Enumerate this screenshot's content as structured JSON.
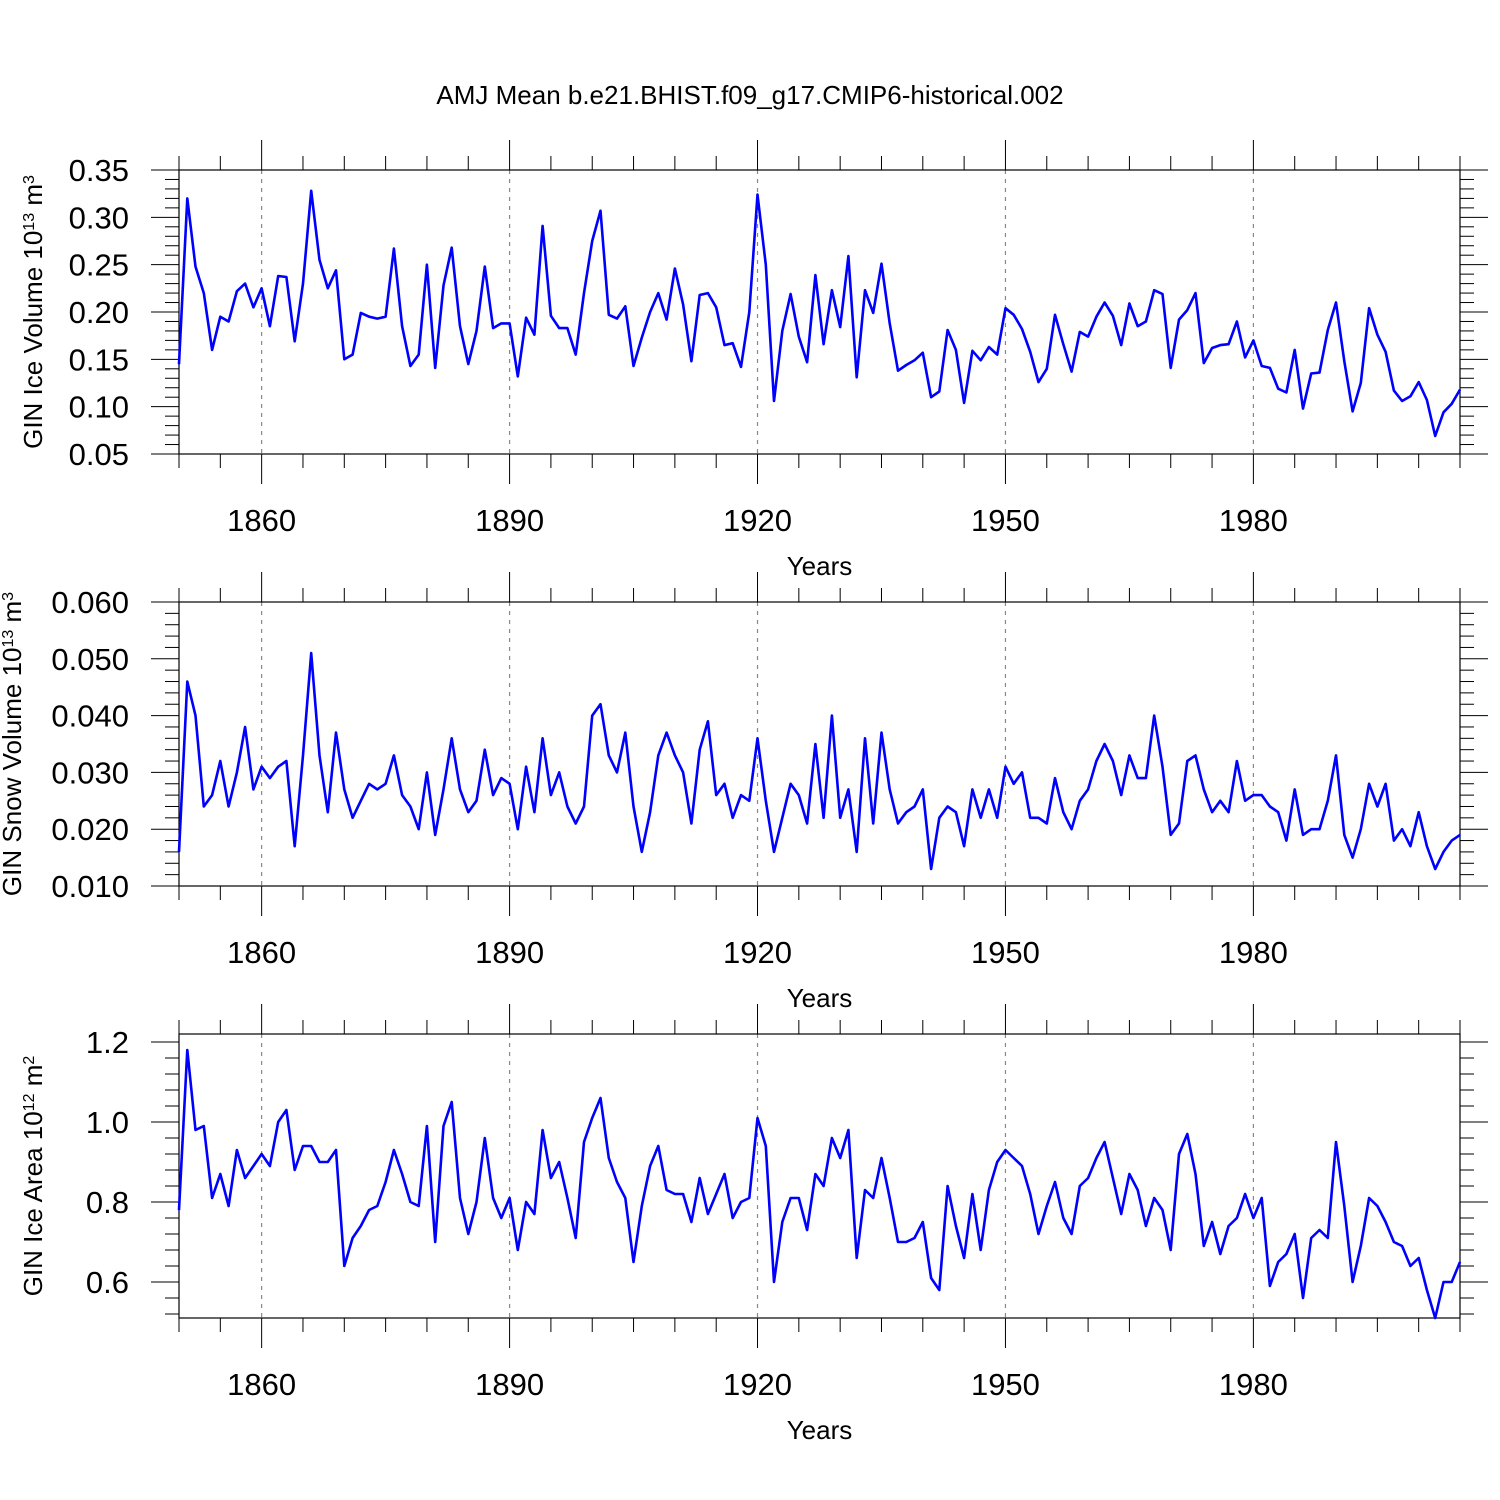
{
  "title": "AMJ Mean b.e21.BHIST.f09_g17.CMIP6-historical.002",
  "colors": {
    "line": "#0000ff",
    "axis": "#000000",
    "grid": "#888888"
  },
  "chart_data": [
    {
      "type": "line",
      "xlabel": "Years",
      "ylabel_main": "GIN Ice Volume 10",
      "ylabel_sup": "13",
      "ylabel_unit": " m",
      "ylabel_unit_sup": "3",
      "xlim": [
        1850,
        2005
      ],
      "ylim": [
        0.05,
        0.35
      ],
      "yticks": [
        0.05,
        0.1,
        0.15,
        0.2,
        0.25,
        0.3,
        0.35
      ],
      "ytick_labels": [
        "0.05",
        "0.10",
        "0.15",
        "0.20",
        "0.25",
        "0.30",
        "0.35"
      ],
      "yminor_step": 0.01,
      "xticks": [
        1860,
        1890,
        1920,
        1950,
        1980
      ],
      "xtick_labels": [
        "1860",
        "1890",
        "1920",
        "1950",
        "1980"
      ],
      "grid": "vertical dashed at major x ticks",
      "x_start": 1850,
      "values": [
        0.145,
        0.32,
        0.248,
        0.22,
        0.16,
        0.195,
        0.19,
        0.222,
        0.23,
        0.205,
        0.225,
        0.185,
        0.238,
        0.237,
        0.169,
        0.23,
        0.328,
        0.255,
        0.225,
        0.244,
        0.15,
        0.155,
        0.199,
        0.195,
        0.193,
        0.195,
        0.267,
        0.185,
        0.143,
        0.155,
        0.25,
        0.141,
        0.228,
        0.268,
        0.185,
        0.145,
        0.18,
        0.248,
        0.183,
        0.188,
        0.188,
        0.132,
        0.194,
        0.176,
        0.291,
        0.196,
        0.183,
        0.183,
        0.155,
        0.22,
        0.275,
        0.307,
        0.197,
        0.193,
        0.206,
        0.143,
        0.173,
        0.2,
        0.22,
        0.192,
        0.246,
        0.208,
        0.148,
        0.218,
        0.22,
        0.205,
        0.165,
        0.167,
        0.142,
        0.2,
        0.324,
        0.25,
        0.106,
        0.18,
        0.219,
        0.174,
        0.147,
        0.239,
        0.166,
        0.223,
        0.184,
        0.259,
        0.131,
        0.223,
        0.199,
        0.251,
        0.188,
        0.138,
        0.144,
        0.149,
        0.157,
        0.11,
        0.116,
        0.181,
        0.16,
        0.104,
        0.159,
        0.149,
        0.163,
        0.155,
        0.204,
        0.197,
        0.182,
        0.158,
        0.126,
        0.14,
        0.197,
        0.166,
        0.137,
        0.179,
        0.174,
        0.195,
        0.21,
        0.196,
        0.165,
        0.209,
        0.185,
        0.19,
        0.223,
        0.219,
        0.141,
        0.192,
        0.202,
        0.22,
        0.146,
        0.162,
        0.165,
        0.166,
        0.19,
        0.152,
        0.17,
        0.143,
        0.141,
        0.119,
        0.115,
        0.16,
        0.098,
        0.135,
        0.136,
        0.181,
        0.21,
        0.148,
        0.095,
        0.125,
        0.204,
        0.176,
        0.158,
        0.117,
        0.106,
        0.111,
        0.126,
        0.107,
        0.069,
        0.094,
        0.103,
        0.118
      ]
    },
    {
      "type": "line",
      "xlabel": "Years",
      "ylabel_main": "GIN Snow Volume 10",
      "ylabel_sup": "13",
      "ylabel_unit": " m",
      "ylabel_unit_sup": "3",
      "xlim": [
        1850,
        2005
      ],
      "ylim": [
        0.01,
        0.06
      ],
      "yticks": [
        0.01,
        0.02,
        0.03,
        0.04,
        0.05,
        0.06
      ],
      "ytick_labels": [
        "0.010",
        "0.020",
        "0.030",
        "0.040",
        "0.050",
        "0.060"
      ],
      "yminor_step": 0.002,
      "xticks": [
        1860,
        1890,
        1920,
        1950,
        1980
      ],
      "xtick_labels": [
        "1860",
        "1890",
        "1920",
        "1950",
        "1980"
      ],
      "grid": "vertical dashed at major x ticks",
      "x_start": 1850,
      "values": [
        0.016,
        0.046,
        0.04,
        0.024,
        0.026,
        0.032,
        0.024,
        0.03,
        0.038,
        0.027,
        0.031,
        0.029,
        0.031,
        0.032,
        0.017,
        0.033,
        0.051,
        0.033,
        0.023,
        0.037,
        0.027,
        0.022,
        0.025,
        0.028,
        0.027,
        0.028,
        0.033,
        0.026,
        0.024,
        0.02,
        0.03,
        0.019,
        0.027,
        0.036,
        0.027,
        0.023,
        0.025,
        0.034,
        0.026,
        0.029,
        0.028,
        0.02,
        0.031,
        0.023,
        0.036,
        0.026,
        0.03,
        0.024,
        0.021,
        0.024,
        0.04,
        0.042,
        0.033,
        0.03,
        0.037,
        0.024,
        0.016,
        0.023,
        0.033,
        0.037,
        0.033,
        0.03,
        0.021,
        0.034,
        0.039,
        0.026,
        0.028,
        0.022,
        0.026,
        0.025,
        0.036,
        0.025,
        0.016,
        0.022,
        0.028,
        0.026,
        0.021,
        0.035,
        0.022,
        0.04,
        0.022,
        0.027,
        0.016,
        0.036,
        0.021,
        0.037,
        0.027,
        0.021,
        0.023,
        0.024,
        0.027,
        0.013,
        0.022,
        0.024,
        0.023,
        0.017,
        0.027,
        0.022,
        0.027,
        0.022,
        0.031,
        0.028,
        0.03,
        0.022,
        0.022,
        0.021,
        0.029,
        0.023,
        0.02,
        0.025,
        0.027,
        0.032,
        0.035,
        0.032,
        0.026,
        0.033,
        0.029,
        0.029,
        0.04,
        0.031,
        0.019,
        0.021,
        0.032,
        0.033,
        0.027,
        0.023,
        0.025,
        0.023,
        0.032,
        0.025,
        0.026,
        0.026,
        0.024,
        0.023,
        0.018,
        0.027,
        0.019,
        0.02,
        0.02,
        0.025,
        0.033,
        0.019,
        0.015,
        0.02,
        0.028,
        0.024,
        0.028,
        0.018,
        0.02,
        0.017,
        0.023,
        0.017,
        0.013,
        0.016,
        0.018,
        0.019
      ]
    },
    {
      "type": "line",
      "xlabel": "Years",
      "ylabel_main": "GIN Ice Area 10",
      "ylabel_sup": "12",
      "ylabel_unit": " m",
      "ylabel_unit_sup": "2",
      "xlim": [
        1850,
        2005
      ],
      "ylim": [
        0.51,
        1.22
      ],
      "yticks": [
        0.6,
        0.8,
        1.0,
        1.2
      ],
      "ytick_labels": [
        "0.6",
        "0.8",
        "1.0",
        "1.2"
      ],
      "yminor_step": 0.04,
      "xticks": [
        1860,
        1890,
        1920,
        1950,
        1980
      ],
      "xtick_labels": [
        "1860",
        "1890",
        "1920",
        "1950",
        "1980"
      ],
      "grid": "vertical dashed at major x ticks",
      "x_start": 1850,
      "values": [
        0.78,
        1.18,
        0.98,
        0.99,
        0.81,
        0.87,
        0.79,
        0.93,
        0.86,
        0.89,
        0.92,
        0.89,
        1.0,
        1.03,
        0.88,
        0.94,
        0.94,
        0.9,
        0.9,
        0.93,
        0.64,
        0.71,
        0.74,
        0.78,
        0.79,
        0.85,
        0.93,
        0.87,
        0.8,
        0.79,
        0.99,
        0.7,
        0.99,
        1.05,
        0.81,
        0.72,
        0.8,
        0.96,
        0.81,
        0.76,
        0.81,
        0.68,
        0.8,
        0.77,
        0.98,
        0.86,
        0.9,
        0.81,
        0.71,
        0.95,
        1.01,
        1.06,
        0.91,
        0.85,
        0.81,
        0.65,
        0.79,
        0.89,
        0.94,
        0.83,
        0.82,
        0.82,
        0.75,
        0.86,
        0.77,
        0.82,
        0.87,
        0.76,
        0.8,
        0.81,
        1.01,
        0.94,
        0.6,
        0.75,
        0.81,
        0.81,
        0.73,
        0.87,
        0.84,
        0.96,
        0.91,
        0.98,
        0.66,
        0.83,
        0.81,
        0.91,
        0.81,
        0.7,
        0.7,
        0.71,
        0.75,
        0.61,
        0.58,
        0.84,
        0.74,
        0.66,
        0.82,
        0.68,
        0.83,
        0.9,
        0.93,
        0.91,
        0.89,
        0.82,
        0.72,
        0.79,
        0.85,
        0.76,
        0.72,
        0.84,
        0.86,
        0.91,
        0.95,
        0.86,
        0.77,
        0.87,
        0.83,
        0.74,
        0.81,
        0.78,
        0.68,
        0.92,
        0.97,
        0.87,
        0.69,
        0.75,
        0.67,
        0.74,
        0.76,
        0.82,
        0.76,
        0.81,
        0.59,
        0.65,
        0.67,
        0.72,
        0.56,
        0.71,
        0.73,
        0.71,
        0.95,
        0.79,
        0.6,
        0.69,
        0.81,
        0.79,
        0.75,
        0.7,
        0.69,
        0.64,
        0.66,
        0.58,
        0.51,
        0.6,
        0.6,
        0.65
      ]
    }
  ]
}
